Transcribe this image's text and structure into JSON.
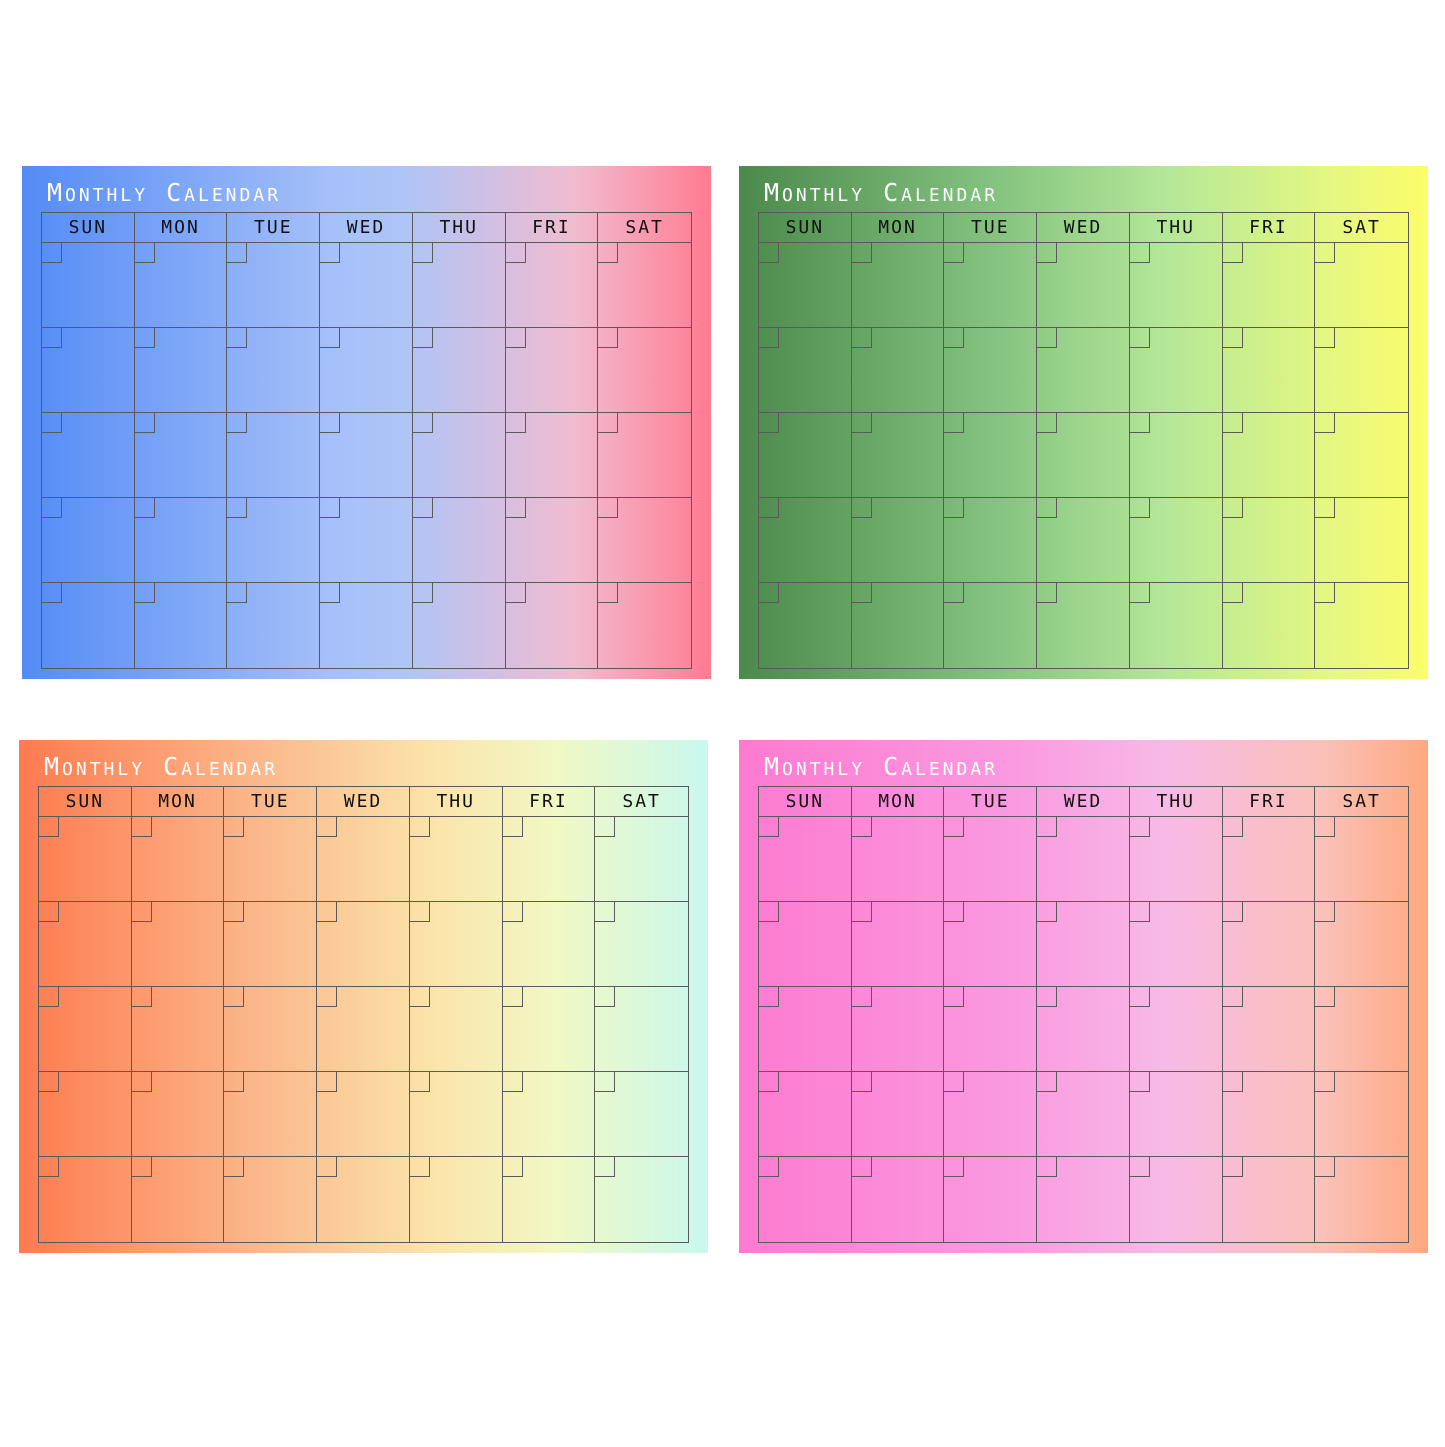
{
  "calendars": [
    {
      "title": "Monthly Calendar",
      "theme": "blue-to-pink"
    },
    {
      "title": "Monthly Calendar",
      "theme": "green-to-yellow"
    },
    {
      "title": "Monthly Calendar",
      "theme": "orange-to-mint"
    },
    {
      "title": "Monthly Calendar",
      "theme": "pink-to-peach"
    }
  ],
  "days": [
    "SUN",
    "MON",
    "TUE",
    "WED",
    "THU",
    "FRI",
    "SAT"
  ],
  "weeks_per_month": 5,
  "colors": {
    "grid_line": "#5a5a5a",
    "title_text": "#ffffff",
    "day_text": "#111111"
  }
}
